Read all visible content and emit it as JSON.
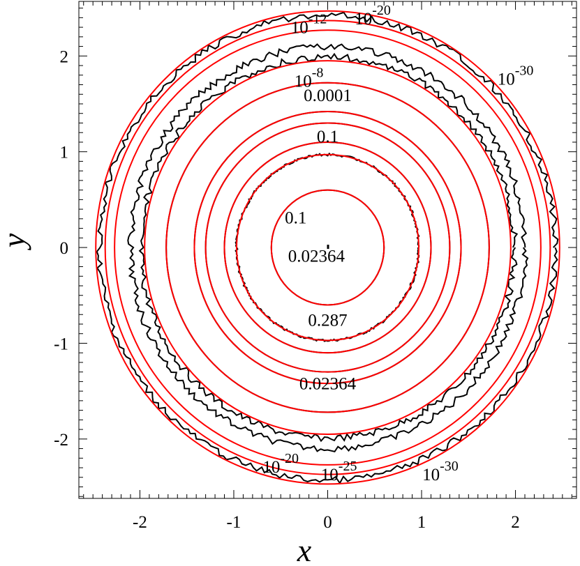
{
  "chart_data": {
    "type": "contour",
    "xlabel": "x",
    "ylabel": "y",
    "xlim": [
      -2.65,
      2.65
    ],
    "ylim": [
      -2.62,
      2.57
    ],
    "x_ticks": [
      -2,
      -1,
      0,
      1,
      2
    ],
    "y_ticks": [
      -2,
      -1,
      0,
      1,
      2
    ],
    "x_tick_labels": [
      "-2",
      "-1",
      "0",
      "1",
      "2"
    ],
    "y_tick_labels": [
      "-2",
      "-1",
      "0",
      "1",
      "2"
    ],
    "grid": false,
    "colors": {
      "black_series": "#000000",
      "red_series": "#ff0000"
    },
    "series": [
      {
        "color": "#000000",
        "radii": [
          0.6,
          0.97,
          1.1,
          1.3,
          1.42,
          1.72,
          1.99,
          2.1,
          2.43
        ],
        "noisy_radii": [
          0.97,
          1.99,
          2.1,
          2.43
        ]
      },
      {
        "color": "#ff0000",
        "radii": [
          0.6,
          0.97,
          1.1,
          1.3,
          1.42,
          1.72,
          1.95,
          2.27,
          2.37,
          2.47
        ]
      }
    ],
    "contour_labels": [
      {
        "base": "10",
        "exp": "-20",
        "x": 0.48,
        "y": 2.33
      },
      {
        "base": "10",
        "exp": "-12",
        "x": -0.2,
        "y": 2.24
      },
      {
        "base": "10",
        "exp": "-30",
        "x": 2.0,
        "y": 1.7
      },
      {
        "base": "10",
        "exp": "-8",
        "x": -0.2,
        "y": 1.68
      },
      {
        "base": "0.0001",
        "exp": "",
        "x": 0.0,
        "y": 1.53
      },
      {
        "base": "0.1",
        "exp": "",
        "x": 0.0,
        "y": 1.1
      },
      {
        "base": "0.1",
        "exp": "",
        "x": -0.34,
        "y": 0.25
      },
      {
        "base": "0.02364",
        "exp": "",
        "x": -0.12,
        "y": -0.15
      },
      {
        "base": "0.287",
        "exp": "",
        "x": 0.0,
        "y": -0.82
      },
      {
        "base": "0.02364",
        "exp": "",
        "x": 0.0,
        "y": -1.48
      },
      {
        "base": "10",
        "exp": "-20",
        "x": -0.5,
        "y": -2.35
      },
      {
        "base": "10",
        "exp": "-25",
        "x": 0.12,
        "y": -2.43
      },
      {
        "base": "10",
        "exp": "-30",
        "x": 1.2,
        "y": -2.43
      }
    ]
  }
}
